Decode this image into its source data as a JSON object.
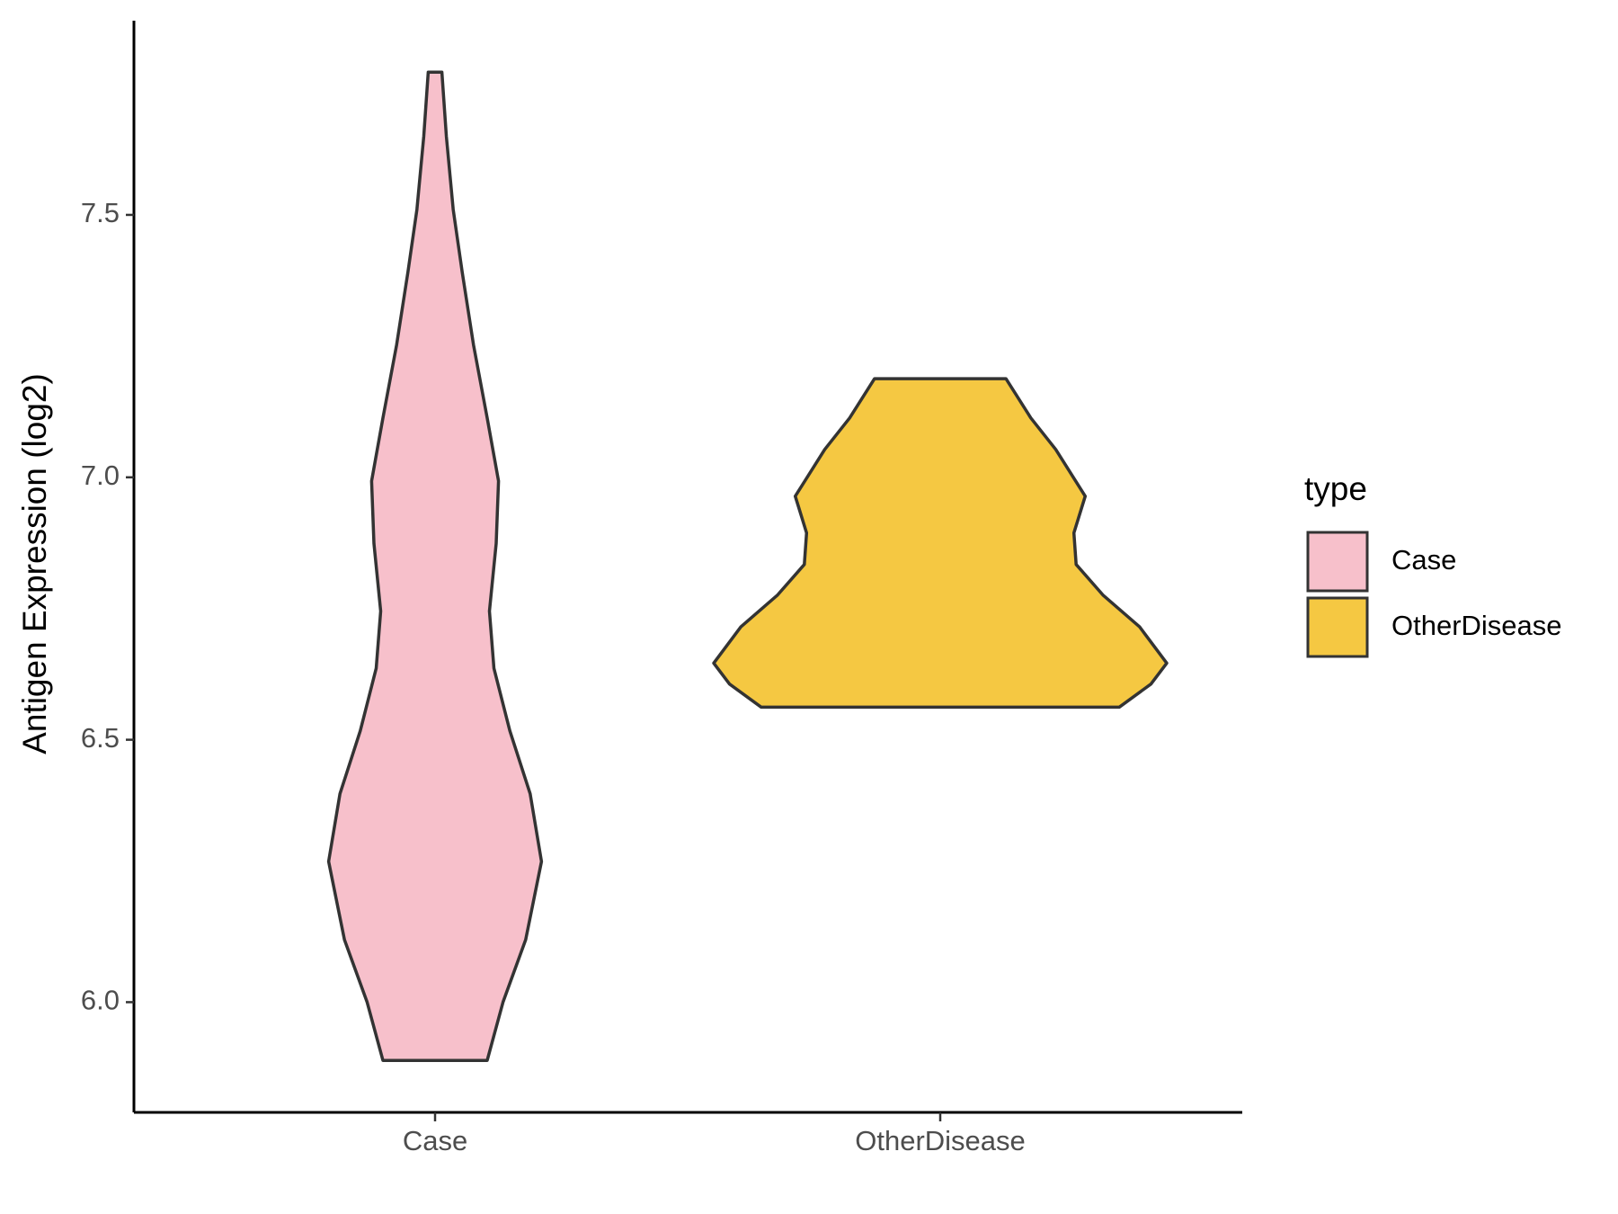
{
  "chart_data": {
    "type": "violin",
    "y_label": "Antigen Expression (log2)",
    "categories": [
      "Case",
      "OtherDisease"
    ],
    "legend_title": "type",
    "legend_position": "right",
    "ylim": [
      5.79,
      7.87
    ],
    "yticks": [
      {
        "value": 6,
        "label": "6.0"
      },
      6.5,
      {
        "value": 7,
        "label": "7.0"
      },
      7.5
    ],
    "series": [
      {
        "name": "Case",
        "color": "#f7c0cb",
        "y": [
          5.889,
          6.0,
          6.119,
          6.268,
          6.397,
          6.517,
          6.636,
          6.745,
          6.874,
          6.993,
          7.113,
          7.252,
          7.391,
          7.51,
          7.649,
          7.772
        ],
        "width": [
          0.23,
          0.3,
          0.4,
          0.47,
          0.42,
          0.33,
          0.26,
          0.24,
          0.27,
          0.28,
          0.23,
          0.17,
          0.12,
          0.08,
          0.05,
          0.03
        ]
      },
      {
        "name": "OtherDisease",
        "color": "#f5c842",
        "y": [
          6.562,
          6.606,
          6.646,
          6.715,
          6.775,
          6.834,
          6.894,
          6.964,
          7.053,
          7.113,
          7.188
        ],
        "width": [
          0.79,
          0.93,
          1.0,
          0.88,
          0.72,
          0.6,
          0.59,
          0.64,
          0.51,
          0.4,
          0.29
        ]
      }
    ]
  }
}
